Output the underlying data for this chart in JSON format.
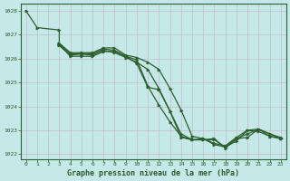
{
  "title": "Graphe pression niveau de la mer (hPa)",
  "bg_color": "#c5e8e8",
  "grid_color": "#b0cccc",
  "line_color": "#2d5e2d",
  "xlim": [
    -0.5,
    23.5
  ],
  "ylim": [
    1021.8,
    1028.3
  ],
  "yticks": [
    1022,
    1023,
    1024,
    1025,
    1026,
    1027,
    1028
  ],
  "xticks": [
    0,
    1,
    2,
    3,
    4,
    5,
    6,
    7,
    8,
    9,
    10,
    11,
    12,
    13,
    14,
    15,
    16,
    17,
    18,
    19,
    20,
    21,
    22,
    23
  ],
  "lines": [
    {
      "x": [
        0,
        1,
        3,
        3,
        4,
        5,
        6,
        7,
        8,
        9,
        10,
        11,
        12,
        13,
        14,
        15,
        16,
        17,
        18,
        19,
        20,
        21,
        22,
        23
      ],
      "y": [
        1028.0,
        1027.3,
        1027.2,
        1026.6,
        1026.1,
        1026.1,
        1026.1,
        1026.3,
        1026.3,
        1026.1,
        1025.8,
        1024.8,
        1024.7,
        1023.8,
        1022.7,
        1022.6,
        1022.6,
        1022.6,
        1022.3,
        1022.55,
        1023.0,
        1022.95,
        1022.75,
        1022.65
      ]
    },
    {
      "x": [
        3,
        4,
        5,
        6,
        7,
        8,
        9,
        10,
        11,
        12,
        13,
        14,
        15,
        16,
        17,
        18,
        19,
        20,
        21,
        22,
        23
      ],
      "y": [
        1026.55,
        1026.15,
        1026.2,
        1026.15,
        1026.35,
        1026.25,
        1026.05,
        1025.85,
        1025.55,
        1024.75,
        1023.8,
        1022.85,
        1022.6,
        1022.6,
        1022.65,
        1022.25,
        1022.65,
        1022.85,
        1023.05,
        1022.75,
        1022.65
      ]
    },
    {
      "x": [
        3,
        4,
        5,
        6,
        7,
        8,
        9,
        10,
        11,
        12,
        13,
        14,
        15,
        16,
        17,
        18,
        19,
        20,
        21,
        22,
        23
      ],
      "y": [
        1026.6,
        1026.2,
        1026.2,
        1026.2,
        1026.4,
        1026.35,
        1026.1,
        1025.95,
        1024.85,
        1024.05,
        1023.35,
        1022.75,
        1022.6,
        1022.65,
        1022.4,
        1022.3,
        1022.65,
        1022.7,
        1023.05,
        1022.85,
        1022.65
      ]
    },
    {
      "x": [
        3,
        4,
        5,
        6,
        7,
        8,
        9,
        10,
        11,
        12,
        13,
        14,
        15,
        16,
        17,
        18,
        19,
        20,
        21,
        22,
        23
      ],
      "y": [
        1026.65,
        1026.25,
        1026.25,
        1026.25,
        1026.45,
        1026.45,
        1026.15,
        1026.05,
        1025.85,
        1025.55,
        1024.75,
        1023.85,
        1022.75,
        1022.65,
        1022.45,
        1022.35,
        1022.7,
        1023.0,
        1023.05,
        1022.85,
        1022.7
      ]
    }
  ]
}
